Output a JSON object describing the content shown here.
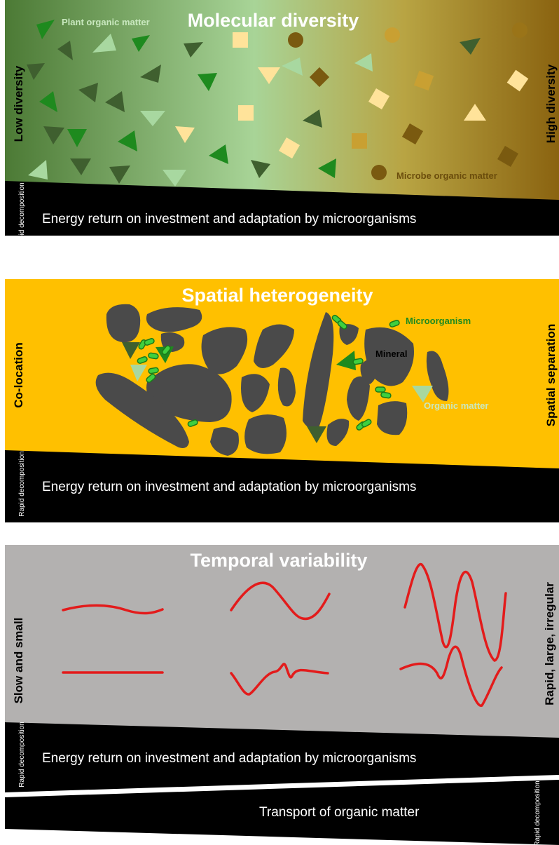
{
  "panel1": {
    "title": "Molecular diversity",
    "left_label": "Low diversity",
    "right_label": "High diversity",
    "plant_label": "Plant organic matter",
    "microbe_label": "Microbe organic matter",
    "band_text": "Energy return on investment and adaptation by microorganisms",
    "band_side": "Rapid decomposition"
  },
  "panel2": {
    "title": "Spatial heterogeneity",
    "left_label": "Co-location",
    "right_label": "Spatial separation",
    "microorganism_label": "Microorganism",
    "mineral_label": "Mineral",
    "organic_label": "Organic matter",
    "band_text": "Energy return on investment and adaptation by microorganisms",
    "band_side": "Rapid decomposition"
  },
  "panel3": {
    "title": "Temporal variability",
    "left_label": "Slow and small",
    "right_label": "Rapid, large, irregular",
    "band_text": "Energy return on investment and adaptation by microorganisms",
    "band_side": "Rapid decomposition"
  },
  "transport": {
    "text": "Transport of organic matter",
    "side": "Rapid decomposition"
  },
  "colors": {
    "green_dark": "#3f5f2f",
    "green_mid": "#1e8a1e",
    "green_light": "#a8d8a0",
    "tan_light": "#ffe39a",
    "tan_dark": "#7a5a10",
    "gold_bg": "#ffc000",
    "grey_bg": "#b3b1b0",
    "rock": "#4a4a4a",
    "red_line": "#e31b1b"
  }
}
